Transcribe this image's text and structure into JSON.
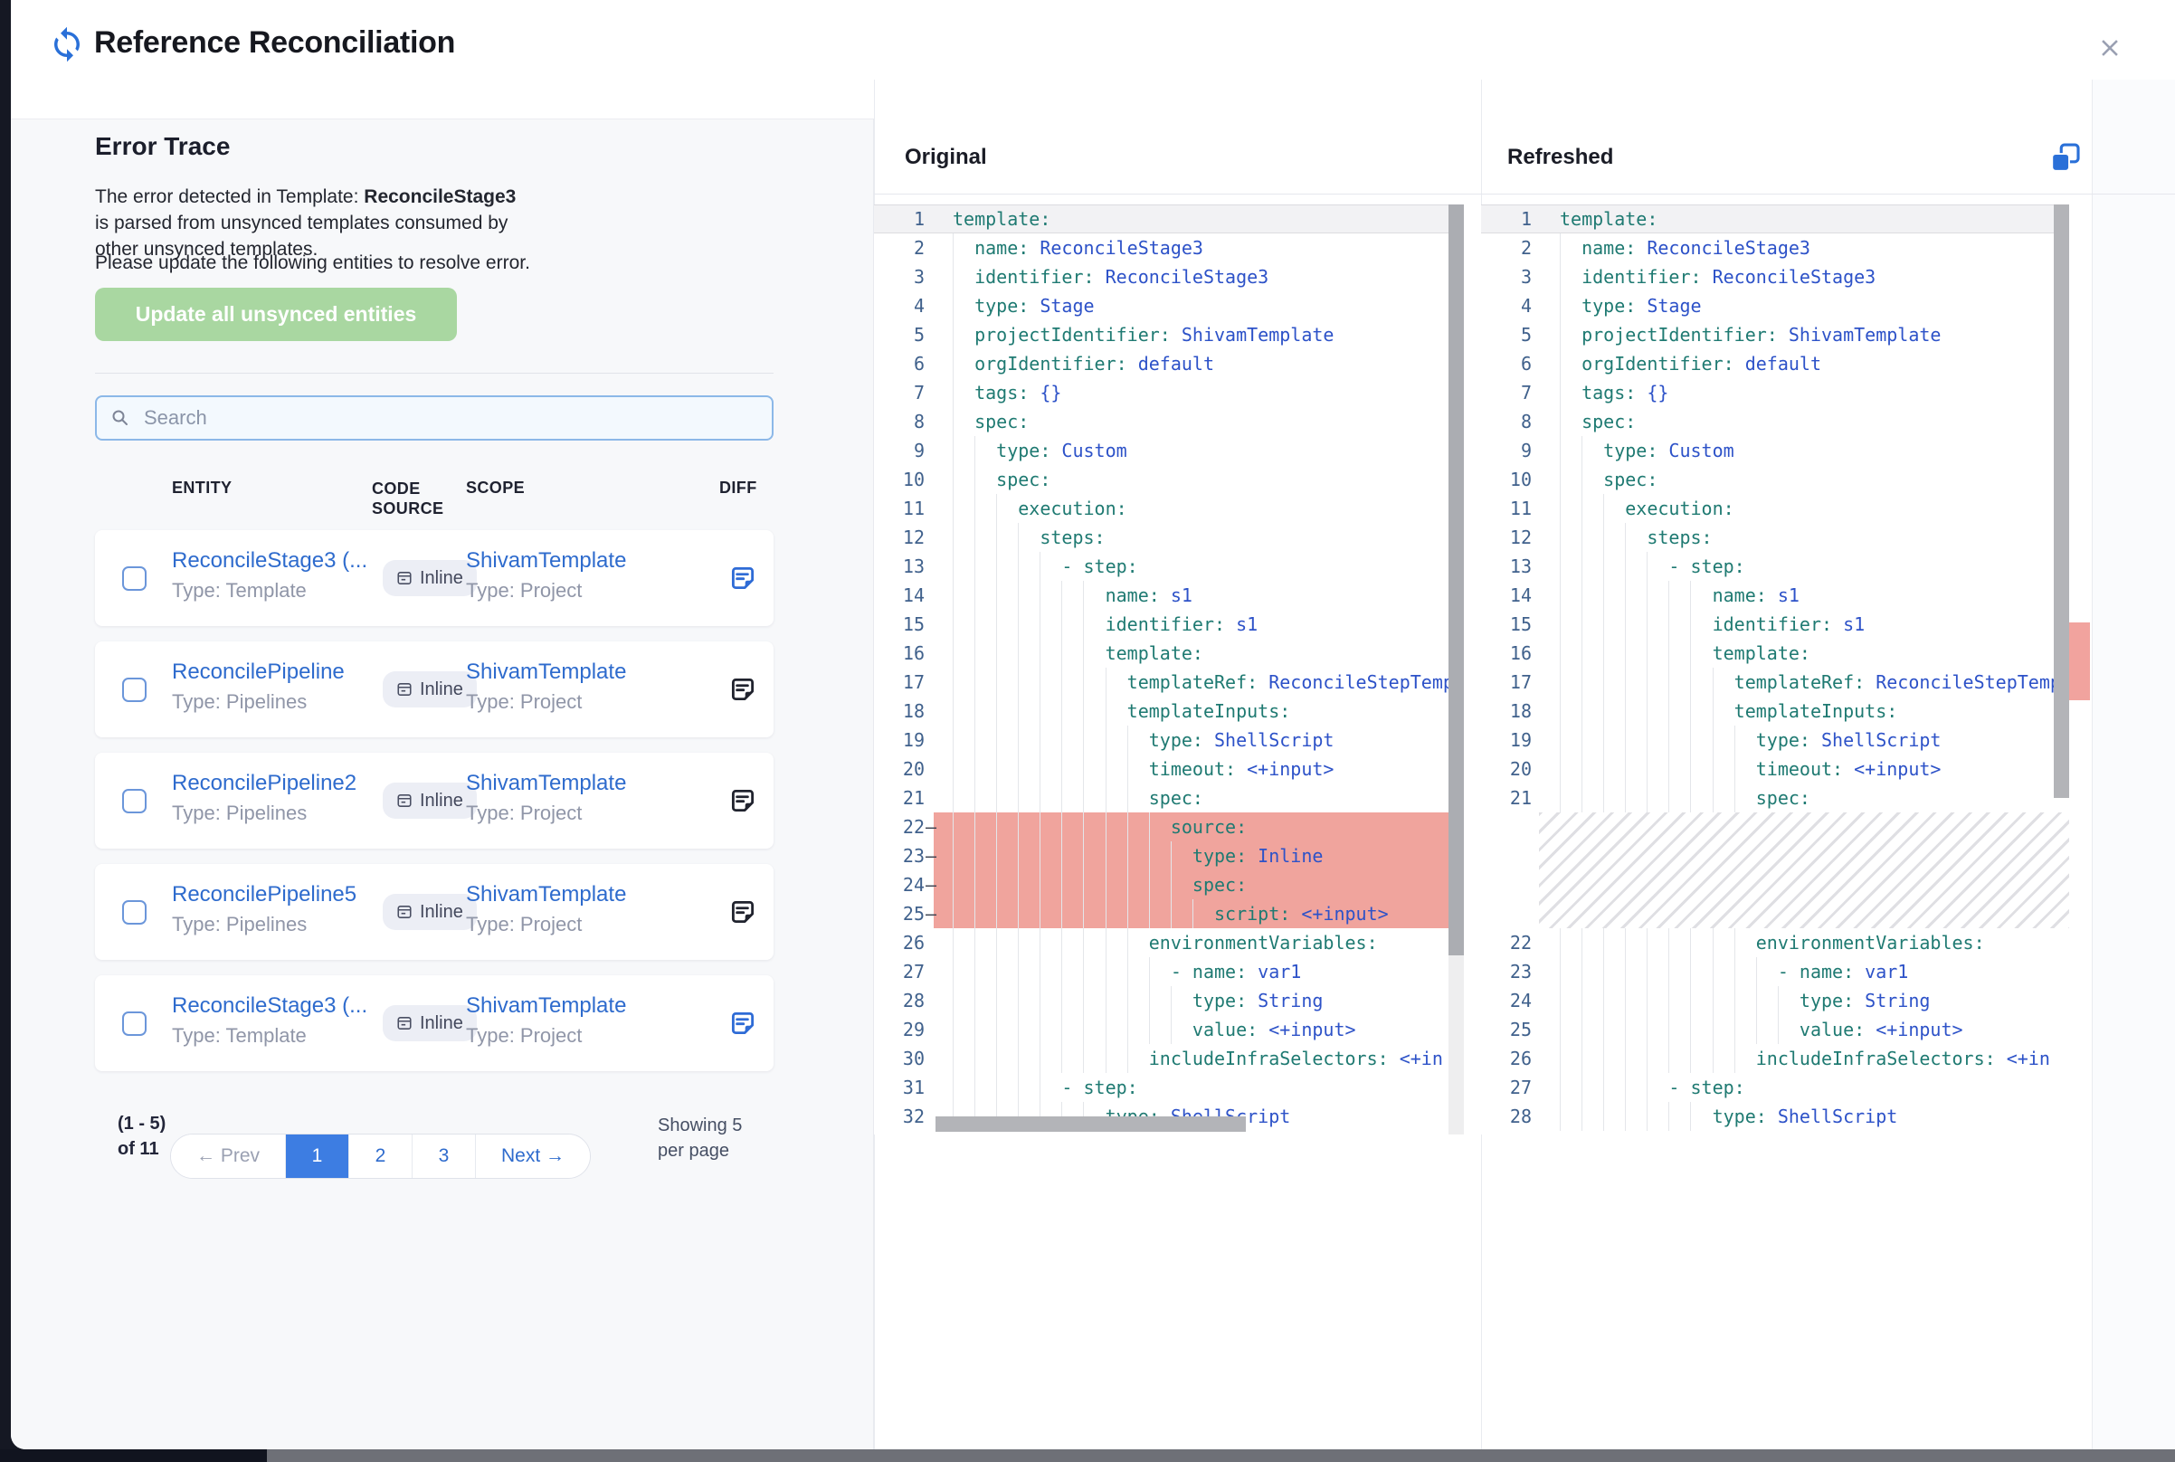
{
  "dialog": {
    "title": "Reference Reconciliation"
  },
  "error_trace": {
    "heading": "Error Trace",
    "description": {
      "prefix": "The error detected in Template: ",
      "bold": "ReconcileStage3",
      "suffix": " is parsed from unsynced templates consumed by other unsynced templates."
    },
    "instruction": "Please update the following entities to resolve error.",
    "update_button_label": "Update all unsynced entities",
    "search_placeholder": "Search"
  },
  "entity_table": {
    "headers": {
      "entity": "ENTITY",
      "code_source": "CODE SOURCE",
      "scope": "SCOPE",
      "diff": "DIFF"
    },
    "rows": [
      {
        "entity": "ReconcileStage3 (...",
        "entity_type": "Type: Template",
        "code_source": "Inline",
        "scope": "ShivamTemplate",
        "scope_type": "Type: Project",
        "diff_highlighted": true
      },
      {
        "entity": "ReconcilePipeline",
        "entity_type": "Type: Pipelines",
        "code_source": "Inline",
        "scope": "ShivamTemplate",
        "scope_type": "Type: Project",
        "diff_highlighted": false
      },
      {
        "entity": "ReconcilePipeline2",
        "entity_type": "Type: Pipelines",
        "code_source": "Inline",
        "scope": "ShivamTemplate",
        "scope_type": "Type: Project",
        "diff_highlighted": false
      },
      {
        "entity": "ReconcilePipeline5",
        "entity_type": "Type: Pipelines",
        "code_source": "Inline",
        "scope": "ShivamTemplate",
        "scope_type": "Type: Project",
        "diff_highlighted": false
      },
      {
        "entity": "ReconcileStage3 (...",
        "entity_type": "Type: Template",
        "code_source": "Inline",
        "scope": "ShivamTemplate",
        "scope_type": "Type: Project",
        "diff_highlighted": true
      }
    ]
  },
  "pagination": {
    "range_label": "(1 - 5) of 11",
    "prev_label": "← Prev",
    "pages": [
      "1",
      "2",
      "3"
    ],
    "active_page": "1",
    "next_label": "Next →",
    "per_page_label": "Showing 5 per page"
  },
  "diff_view": {
    "original": {
      "title": "Original",
      "lines": [
        {
          "n": 1,
          "t": "template:"
        },
        {
          "n": 2,
          "t": "  name: ReconcileStage3"
        },
        {
          "n": 3,
          "t": "  identifier: ReconcileStage3"
        },
        {
          "n": 4,
          "t": "  type: Stage"
        },
        {
          "n": 5,
          "t": "  projectIdentifier: ShivamTemplate"
        },
        {
          "n": 6,
          "t": "  orgIdentifier: default"
        },
        {
          "n": 7,
          "t": "  tags: {}"
        },
        {
          "n": 8,
          "t": "  spec:"
        },
        {
          "n": 9,
          "t": "    type: Custom"
        },
        {
          "n": 10,
          "t": "    spec:"
        },
        {
          "n": 11,
          "t": "      execution:"
        },
        {
          "n": 12,
          "t": "        steps:"
        },
        {
          "n": 13,
          "t": "          - step:"
        },
        {
          "n": 14,
          "t": "              name: s1"
        },
        {
          "n": 15,
          "t": "              identifier: s1"
        },
        {
          "n": 16,
          "t": "              template:"
        },
        {
          "n": 17,
          "t": "                templateRef: ReconcileStepTempl"
        },
        {
          "n": 18,
          "t": "                templateInputs:"
        },
        {
          "n": 19,
          "t": "                  type: ShellScript"
        },
        {
          "n": 20,
          "t": "                  timeout: <+input>"
        },
        {
          "n": 21,
          "t": "                  spec:"
        },
        {
          "n": 22,
          "t": "                    source:",
          "removed": true
        },
        {
          "n": 23,
          "t": "                      type: Inline",
          "removed": true
        },
        {
          "n": 24,
          "t": "                      spec:",
          "removed": true
        },
        {
          "n": 25,
          "t": "                        script: <+input>",
          "removed": true
        },
        {
          "n": 26,
          "t": "                  environmentVariables:"
        },
        {
          "n": 27,
          "t": "                    - name: var1"
        },
        {
          "n": 28,
          "t": "                      type: String"
        },
        {
          "n": 29,
          "t": "                      value: <+input>"
        },
        {
          "n": 30,
          "t": "                  includeInfraSelectors: <+in"
        },
        {
          "n": 31,
          "t": "          - step:"
        },
        {
          "n": 32,
          "t": "              type: ShellScript"
        }
      ]
    },
    "refreshed": {
      "title": "Refreshed",
      "removed_gap_lines": 4,
      "lines": [
        {
          "n": 1,
          "t": "template:"
        },
        {
          "n": 2,
          "t": "  name: ReconcileStage3"
        },
        {
          "n": 3,
          "t": "  identifier: ReconcileStage3"
        },
        {
          "n": 4,
          "t": "  type: Stage"
        },
        {
          "n": 5,
          "t": "  projectIdentifier: ShivamTemplate"
        },
        {
          "n": 6,
          "t": "  orgIdentifier: default"
        },
        {
          "n": 7,
          "t": "  tags: {}"
        },
        {
          "n": 8,
          "t": "  spec:"
        },
        {
          "n": 9,
          "t": "    type: Custom"
        },
        {
          "n": 10,
          "t": "    spec:"
        },
        {
          "n": 11,
          "t": "      execution:"
        },
        {
          "n": 12,
          "t": "        steps:"
        },
        {
          "n": 13,
          "t": "          - step:"
        },
        {
          "n": 14,
          "t": "              name: s1"
        },
        {
          "n": 15,
          "t": "              identifier: s1"
        },
        {
          "n": 16,
          "t": "              template:"
        },
        {
          "n": 17,
          "t": "                templateRef: ReconcileStepTempl"
        },
        {
          "n": 18,
          "t": "                templateInputs:"
        },
        {
          "n": 19,
          "t": "                  type: ShellScript"
        },
        {
          "n": 20,
          "t": "                  timeout: <+input>"
        },
        {
          "n": 21,
          "t": "                  spec:"
        },
        {
          "gap": true
        },
        {
          "n": 22,
          "t": "                  environmentVariables:"
        },
        {
          "n": 23,
          "t": "                    - name: var1"
        },
        {
          "n": 24,
          "t": "                      type: String"
        },
        {
          "n": 25,
          "t": "                      value: <+input>"
        },
        {
          "n": 26,
          "t": "                  includeInfraSelectors: <+in"
        },
        {
          "n": 27,
          "t": "          - step:"
        },
        {
          "n": 28,
          "t": "              type: ShellScript"
        }
      ]
    }
  },
  "colors": {
    "accent_blue": "#2e6bcd",
    "active_page_blue": "#3d7de2",
    "button_green": "#a9d7a1",
    "yaml_key_teal": "#1f7a72",
    "yaml_value_blue": "#2d52c8",
    "line_number": "#40618c",
    "removed_highlight": "#f0a49d",
    "page_background": "#151823"
  }
}
